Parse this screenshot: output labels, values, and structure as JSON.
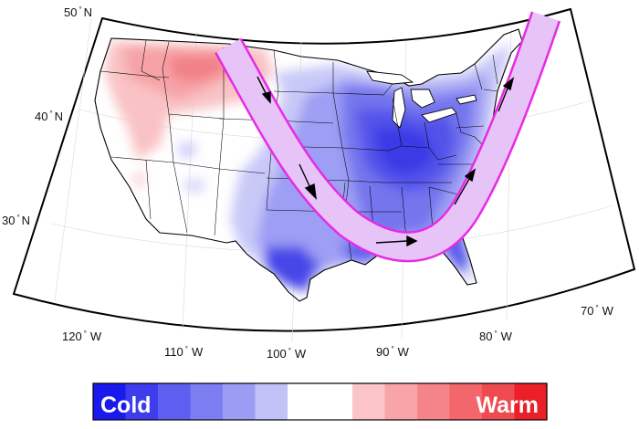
{
  "latitude_labels": [
    "50",
    "40",
    "30"
  ],
  "longitude_labels": [
    "120",
    "110",
    "100",
    "90",
    "80",
    "70"
  ],
  "latitude_suffix": "N",
  "longitude_suffix": "W",
  "degree_symbol": "°",
  "legend": {
    "cold_label": "Cold",
    "warm_label": "Warm",
    "colors": [
      "#1a1aee",
      "#3d3dee",
      "#5e5ef0",
      "#7d7df2",
      "#9c9cf4",
      "#c2c2f8",
      "#ffffff",
      "#ffffff",
      "#fbc4c6",
      "#f8a4a8",
      "#f58489",
      "#f2666c",
      "#ef4a4f",
      "#ea1f27"
    ]
  },
  "colors": {
    "jet_stream_outline": "#e62be6",
    "jet_stream_fill": "#e6e6fa",
    "cold_anomaly": "#3a3aea",
    "warm_anomaly": "#f5a0a4"
  }
}
